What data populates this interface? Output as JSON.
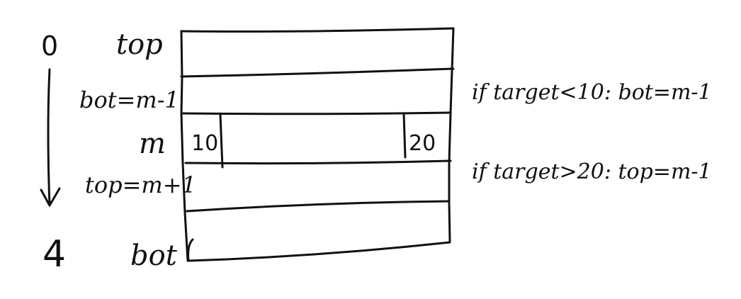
{
  "diagram": {
    "left_labels": {
      "start_index": "0",
      "end_index": "4",
      "top": "top",
      "bot_update": "bot=m-1",
      "mid": "m",
      "top_update": "top=m+1",
      "bot": "bot"
    },
    "mid_row": {
      "left_value": "10",
      "right_value": "20"
    },
    "right_labels": {
      "less_case": "if target<10: bot=m-1",
      "greater_case": "if target>20: top=m-1"
    },
    "rows": 5,
    "arrow_direction": "down"
  }
}
